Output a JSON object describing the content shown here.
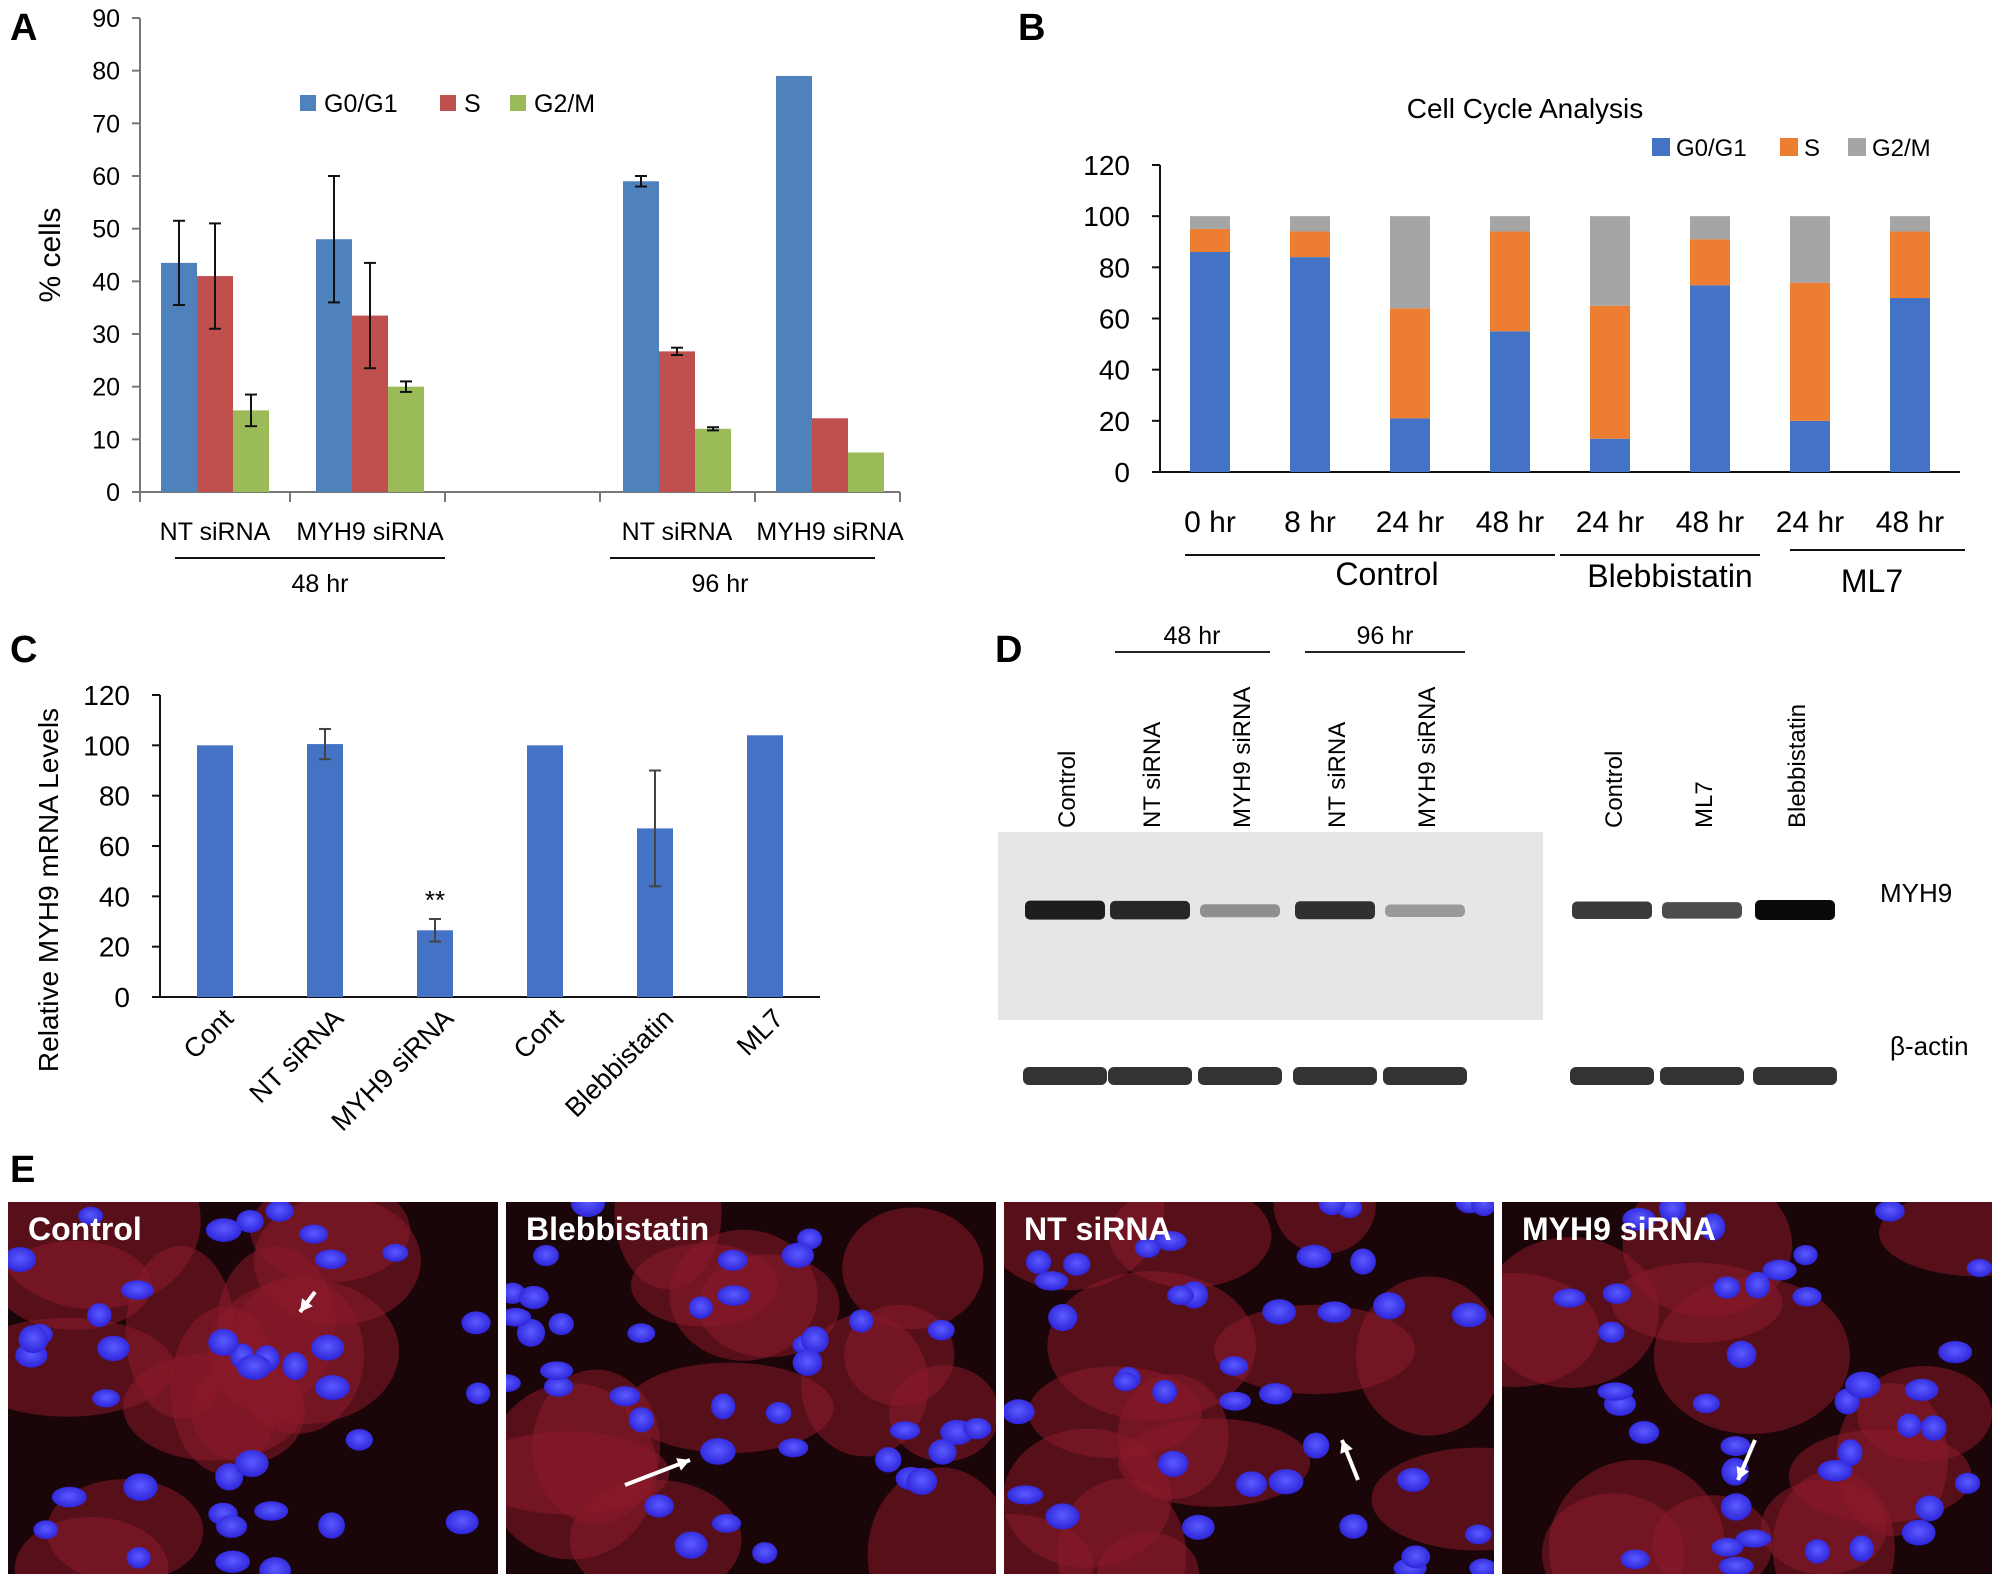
{
  "chart_data": [
    {
      "panel": "A",
      "type": "bar",
      "title": "",
      "ylabel": "% cells",
      "ylim": [
        0,
        90
      ],
      "yticks": [
        0,
        10,
        20,
        30,
        40,
        50,
        60,
        70,
        80,
        90
      ],
      "legend": {
        "position": "top",
        "entries": [
          "G0/G1",
          "S",
          "G2/M"
        ]
      },
      "groups": [
        {
          "label": "NT siRNA",
          "time": "48 hr",
          "values": [
            43.5,
            41,
            15.5
          ],
          "errors": [
            8,
            10,
            3
          ]
        },
        {
          "label": "MYH9 siRNA",
          "time": "48 hr",
          "values": [
            48,
            33.5,
            20
          ],
          "errors": [
            12,
            10,
            1
          ]
        },
        {
          "label": "NT siRNA",
          "time": "96 hr",
          "values": [
            59,
            26.7,
            12
          ],
          "errors": [
            1,
            0.7,
            0.3
          ]
        },
        {
          "label": "MYH9 siRNA",
          "time": "96 hr",
          "values": [
            79,
            14,
            7.5
          ],
          "errors": [
            0,
            0,
            0
          ]
        }
      ],
      "time_labels": [
        "48 hr",
        "96 hr"
      ],
      "colors": [
        "#4f81bd",
        "#c0504d",
        "#9bbb59"
      ]
    },
    {
      "panel": "B",
      "type": "bar",
      "stacked": true,
      "title": "Cell Cycle Analysis",
      "ylim": [
        0,
        120
      ],
      "yticks": [
        0,
        20,
        40,
        60,
        80,
        100,
        120
      ],
      "legend": {
        "position": "top-right",
        "entries": [
          "G0/G1",
          "S",
          "G2/M"
        ]
      },
      "categories": [
        "0 hr",
        "8 hr",
        "24 hr",
        "48 hr",
        "24 hr",
        "48 hr",
        "24 hr",
        "48 hr"
      ],
      "series": [
        {
          "name": "G0/G1",
          "values": [
            86,
            84,
            21,
            55,
            13,
            73,
            20,
            68
          ]
        },
        {
          "name": "S",
          "values": [
            9,
            10,
            43,
            39,
            52,
            18,
            54,
            26
          ]
        },
        {
          "name": "G2/M",
          "values": [
            5,
            6,
            36,
            6,
            35,
            9,
            26,
            6
          ]
        }
      ],
      "group_labels": [
        "Control",
        "Blebbistatin",
        "ML7"
      ],
      "colors": [
        "#4472c4",
        "#ed7d31",
        "#a5a5a5"
      ]
    },
    {
      "panel": "C",
      "type": "bar",
      "title": "",
      "ylabel": "Relative MYH9 mRNA Levels",
      "ylim": [
        0,
        120
      ],
      "yticks": [
        0,
        20,
        40,
        60,
        80,
        100,
        120
      ],
      "categories": [
        "Cont",
        "NT siRNA",
        "MYH9 siRNA",
        "Cont",
        "Blebbistatin",
        "ML7"
      ],
      "values": [
        100,
        100.5,
        26.5,
        100,
        67,
        104
      ],
      "errors": [
        0,
        6,
        4.5,
        0,
        23,
        0
      ],
      "annotations": [
        "",
        "",
        "**",
        "",
        "",
        ""
      ],
      "colors": [
        "#4472c4"
      ]
    }
  ],
  "panel_letters": [
    "A",
    "B",
    "C",
    "D",
    "E"
  ],
  "blot": {
    "time_labels": [
      "48 hr",
      "96 hr"
    ],
    "lanes": [
      "Control",
      "NT siRNA",
      "MYH9 siRNA",
      "NT siRNA",
      "MYH9 siRNA",
      "Control",
      "ML7",
      "Blebbistatin"
    ],
    "bands": [
      "MYH9",
      "β-actin"
    ],
    "intensity": [
      0.9,
      0.85,
      0.3,
      0.8,
      0.25,
      0.75,
      0.65,
      1.0
    ]
  },
  "micrographs": {
    "labels": [
      "Control",
      "Blebbistatin",
      "NT siRNA",
      "MYH9 siRNA"
    ]
  }
}
